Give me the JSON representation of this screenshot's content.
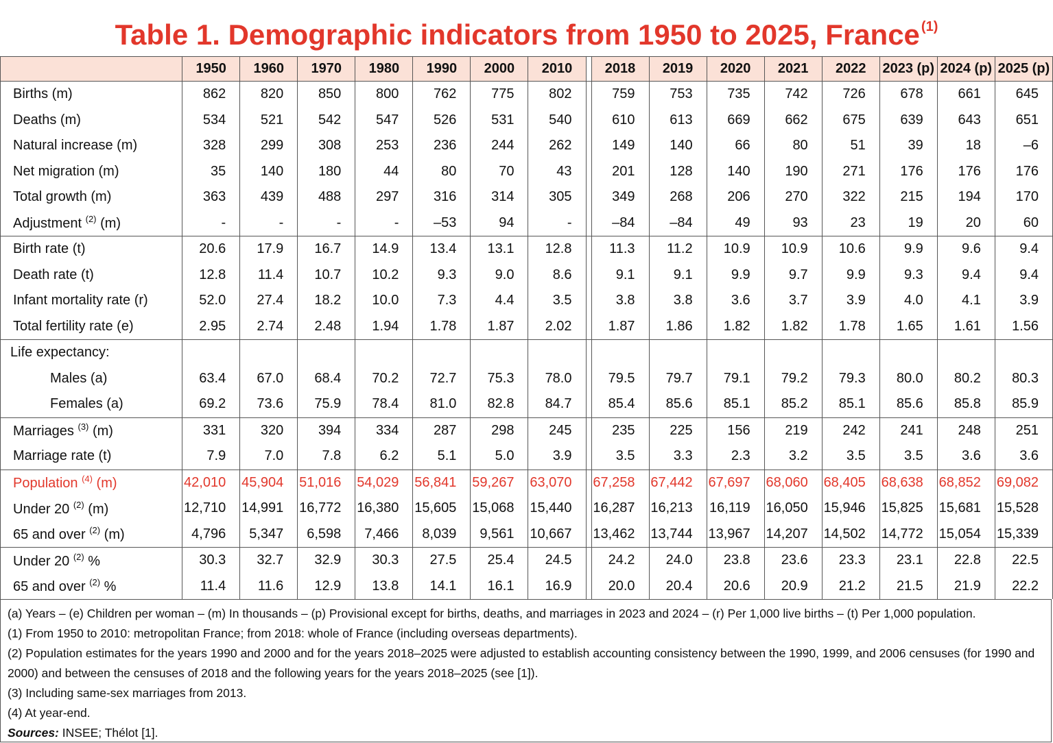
{
  "title": {
    "text": "Table 1. Demographic indicators from 1950 to 2025, France",
    "sup": "(1)"
  },
  "table": {
    "columns": [
      "1950",
      "1960",
      "1970",
      "1980",
      "1990",
      "2000",
      "2010",
      "2018",
      "2019",
      "2020",
      "2021",
      "2022",
      "2023 (p)",
      "2024 (p)",
      "2025 (p)"
    ],
    "groups": [
      {
        "rows": [
          {
            "label": "Births (m)",
            "cells": [
              "862",
              "820",
              "850",
              "800",
              "762",
              "775",
              "802",
              "759",
              "753",
              "735",
              "742",
              "726",
              "678",
              "661",
              "645"
            ]
          },
          {
            "label": "Deaths (m)",
            "cells": [
              "534",
              "521",
              "542",
              "547",
              "526",
              "531",
              "540",
              "610",
              "613",
              "669",
              "662",
              "675",
              "639",
              "643",
              "651"
            ]
          },
          {
            "label": "Natural increase (m)",
            "cells": [
              "328",
              "299",
              "308",
              "253",
              "236",
              "244",
              "262",
              "149",
              "140",
              "66",
              "80",
              "51",
              "39",
              "18",
              "–6"
            ]
          },
          {
            "label": "Net migration (m)",
            "cells": [
              "35",
              "140",
              "180",
              "44",
              "80",
              "70",
              "43",
              "201",
              "128",
              "140",
              "190",
              "271",
              "176",
              "176",
              "176"
            ]
          },
          {
            "label": "Total growth (m)",
            "cells": [
              "363",
              "439",
              "488",
              "297",
              "316",
              "314",
              "305",
              "349",
              "268",
              "206",
              "270",
              "322",
              "215",
              "194",
              "170"
            ]
          },
          {
            "label": "Adjustment",
            "sup": "(2)",
            "unit": "(m)",
            "cells": [
              "-",
              "-",
              "-",
              "-",
              "–53",
              "94",
              "-",
              "–84",
              "–84",
              "49",
              "93",
              "23",
              "19",
              "20",
              "60"
            ]
          }
        ]
      },
      {
        "rows": [
          {
            "label": "Birth rate (t)",
            "cells": [
              "20.6",
              "17.9",
              "16.7",
              "14.9",
              "13.4",
              "13.1",
              "12.8",
              "11.3",
              "11.2",
              "10.9",
              "10.9",
              "10.6",
              "9.9",
              "9.6",
              "9.4"
            ]
          },
          {
            "label": "Death rate (t)",
            "cells": [
              "12.8",
              "11.4",
              "10.7",
              "10.2",
              "9.3",
              "9.0",
              "8.6",
              "9.1",
              "9.1",
              "9.9",
              "9.7",
              "9.9",
              "9.3",
              "9.4",
              "9.4"
            ]
          },
          {
            "label": "Infant mortality rate (r)",
            "cells": [
              "52.0",
              "27.4",
              "18.2",
              "10.0",
              "7.3",
              "4.4",
              "3.5",
              "3.8",
              "3.8",
              "3.6",
              "3.7",
              "3.9",
              "4.0",
              "4.1",
              "3.9"
            ]
          },
          {
            "label": "Total fertility rate (e)",
            "cells": [
              "2.95",
              "2.74",
              "2.48",
              "1.94",
              "1.78",
              "1.87",
              "2.02",
              "1.87",
              "1.86",
              "1.82",
              "1.82",
              "1.78",
              "1.65",
              "1.61",
              "1.56"
            ]
          }
        ]
      },
      {
        "label": "Life expectancy:",
        "rows": [
          {
            "label": "Males (a)",
            "cells": [
              "63.4",
              "67.0",
              "68.4",
              "70.2",
              "72.7",
              "75.3",
              "78.0",
              "79.5",
              "79.7",
              "79.1",
              "79.2",
              "79.3",
              "80.0",
              "80.2",
              "80.3"
            ]
          },
          {
            "label": "Females (a)",
            "cells": [
              "69.2",
              "73.6",
              "75.9",
              "78.4",
              "81.0",
              "82.8",
              "84.7",
              "85.4",
              "85.6",
              "85.1",
              "85.2",
              "85.1",
              "85.6",
              "85.8",
              "85.9"
            ]
          }
        ]
      },
      {
        "rows": [
          {
            "label": "Marriages",
            "sup": "(3)",
            "unit": "(m)",
            "cells": [
              "331",
              "320",
              "394",
              "334",
              "287",
              "298",
              "245",
              "235",
              "225",
              "156",
              "219",
              "242",
              "241",
              "248",
              "251"
            ]
          },
          {
            "label": "Marriage rate (t)",
            "cells": [
              "7.9",
              "7.0",
              "7.8",
              "6.2",
              "5.1",
              "5.0",
              "3.9",
              "3.5",
              "3.3",
              "2.3",
              "3.2",
              "3.5",
              "3.5",
              "3.6",
              "3.6"
            ]
          }
        ]
      },
      {
        "rows": [
          {
            "label": "Population",
            "sup": "(4)",
            "unit": "(m)",
            "color": "#e2372b",
            "cells": [
              "42,010",
              "45,904",
              "51,016",
              "54,029",
              "56,841",
              "59,267",
              "63,070",
              "67,258",
              "67,442",
              "67,697",
              "68,060",
              "68,405",
              "68,638",
              "68,852",
              "69,082"
            ]
          },
          {
            "label": "Under 20",
            "sup": "(2)",
            "unit": "(m)",
            "cells": [
              "12,710",
              "14,991",
              "16,772",
              "16,380",
              "15,605",
              "15,068",
              "15,440",
              "16,287",
              "16,213",
              "16,119",
              "16,050",
              "15,946",
              "15,825",
              "15,681",
              "15,528"
            ]
          },
          {
            "label": "65 and over",
            "sup": "(2)",
            "unit": "(m)",
            "cells": [
              "4,796",
              "5,347",
              "6,598",
              "7,466",
              "8,039",
              "9,561",
              "10,667",
              "13,462",
              "13,744",
              "13,967",
              "14,207",
              "14,502",
              "14,772",
              "15,054",
              "15,339"
            ]
          }
        ]
      },
      {
        "rows": [
          {
            "label": "Under 20",
            "sup": "(2)",
            "unit": "%",
            "cells": [
              "30.3",
              "32.7",
              "32.9",
              "30.3",
              "27.5",
              "25.4",
              "24.5",
              "24.2",
              "24.0",
              "23.8",
              "23.6",
              "23.3",
              "23.1",
              "22.8",
              "22.5"
            ]
          },
          {
            "label": "65 and over",
            "sup": "(2)",
            "unit": "%",
            "cells": [
              "11.4",
              "11.6",
              "12.9",
              "13.8",
              "14.1",
              "16.1",
              "16.9",
              "20.0",
              "20.4",
              "20.6",
              "20.9",
              "21.2",
              "21.5",
              "21.9",
              "22.2"
            ]
          }
        ]
      }
    ]
  },
  "notes": [
    "(a) Years – (e) Children per woman – (m) In thousands – (p) Provisional except for births, deaths, and marriages in 2023 and 2024 – (r) Per 1,000 live births – (t) Per 1,000 population.",
    "(1) From 1950 to 2010: metropolitan France; from 2018: whole of France (including overseas departments).",
    "(2) Population estimates for the years 1990 and 2000 and for the years 2018–2025 were adjusted to establish accounting consistency between the 1990, 1999, and 2006 censuses (for 1990 and 2000) and between the censuses of 2018 and the following years for the years 2018–2025 (see [1]).",
    "(3) Including same-sex marriages from 2013.",
    "(4) At year-end."
  ],
  "sources": {
    "label": "Sources:",
    "text": "INSEE; Thélot [1]."
  }
}
